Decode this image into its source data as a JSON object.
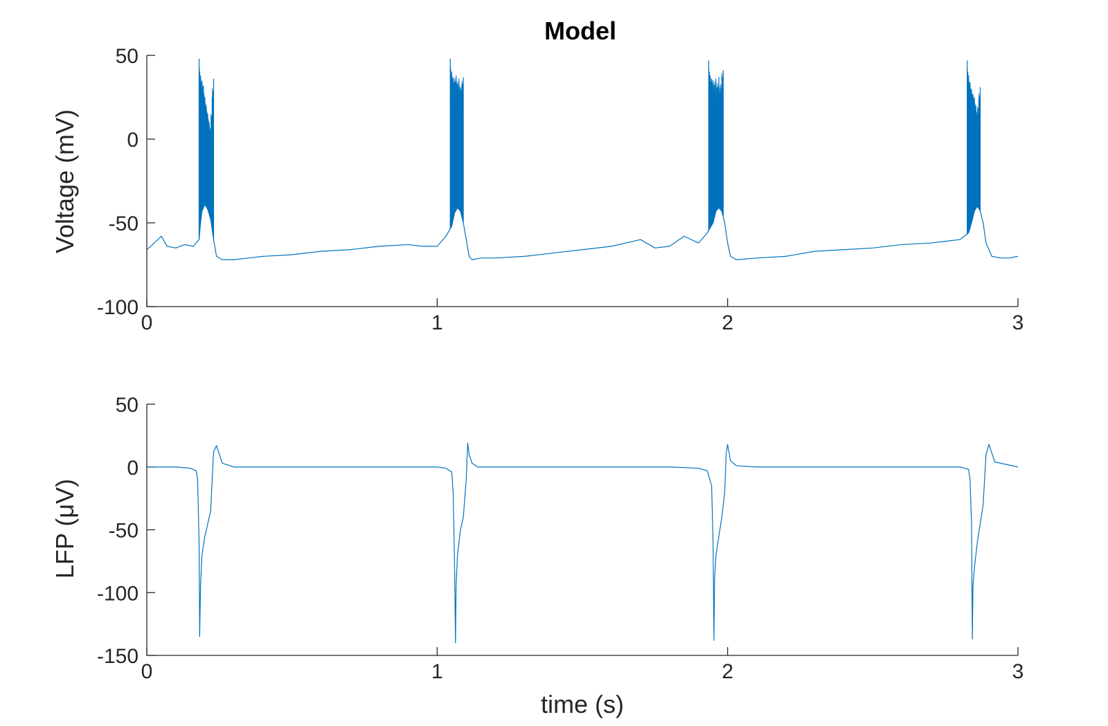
{
  "chart_data": [
    {
      "type": "line",
      "title": "Model",
      "xlabel": "",
      "ylabel": "Voltage (mV)",
      "xlim": [
        0,
        3
      ],
      "ylim": [
        -100,
        50
      ],
      "xticks": [
        0,
        1,
        2,
        3
      ],
      "yticks": [
        -100,
        -50,
        0,
        50
      ],
      "xtick_labels": [
        "0",
        "1",
        "2",
        "3"
      ],
      "ytick_labels": [
        "-100",
        "-50",
        "0",
        "50"
      ],
      "grid": false,
      "color": "#0072BD",
      "series": [
        {
          "x": [
            0.0,
            0.02,
            0.05,
            0.07,
            0.1,
            0.13,
            0.16,
            0.18,
            0.185,
            0.19,
            0.2,
            0.21,
            0.22,
            0.23,
            0.24,
            0.26,
            0.3,
            0.35,
            0.4,
            0.5,
            0.6,
            0.7,
            0.8,
            0.9,
            0.95,
            1.0,
            1.03,
            1.05,
            1.06,
            1.07,
            1.08,
            1.09,
            1.1,
            1.11,
            1.12,
            1.15,
            1.2,
            1.3,
            1.4,
            1.5,
            1.6,
            1.7,
            1.75,
            1.8,
            1.85,
            1.9,
            1.93,
            1.95,
            1.96,
            1.97,
            1.98,
            1.99,
            2.0,
            2.01,
            2.03,
            2.1,
            2.2,
            2.3,
            2.4,
            2.5,
            2.6,
            2.7,
            2.75,
            2.8,
            2.83,
            2.84,
            2.85,
            2.86,
            2.87,
            2.88,
            2.89,
            2.91,
            2.94,
            2.97,
            3.0
          ],
          "y": [
            -66,
            -63,
            -58,
            -64,
            -65,
            -63,
            -64,
            -60,
            -50,
            -43,
            -39,
            -42,
            -48,
            -60,
            -70,
            -72,
            -72,
            -71,
            -70,
            -69,
            -67,
            -66,
            -64,
            -63,
            -64,
            -64,
            -58,
            -52,
            -44,
            -41,
            -43,
            -50,
            -60,
            -70,
            -72,
            -71,
            -71,
            -70,
            -68,
            -66,
            -64,
            -60,
            -65,
            -64,
            -58,
            -62,
            -56,
            -50,
            -43,
            -41,
            -43,
            -50,
            -62,
            -70,
            -72,
            -71,
            -70,
            -67,
            -66,
            -65,
            -63,
            -62,
            -61,
            -60,
            -56,
            -50,
            -43,
            -40,
            -43,
            -50,
            -62,
            -70,
            -71,
            -71,
            -70
          ]
        }
      ],
      "spikes": [
        {
          "x": [
            0.18,
            0.185,
            0.19,
            0.195,
            0.2,
            0.205,
            0.21,
            0.215,
            0.22,
            0.225,
            0.23
          ],
          "y": [
            48,
            38,
            35,
            32,
            25,
            20,
            15,
            10,
            5,
            25,
            36
          ]
        },
        {
          "x": [
            1.045,
            1.05,
            1.055,
            1.06,
            1.065,
            1.07,
            1.075,
            1.08,
            1.085,
            1.09
          ],
          "y": [
            48,
            40,
            37,
            35,
            38,
            33,
            36,
            30,
            33,
            37
          ]
        },
        {
          "x": [
            1.935,
            1.94,
            1.945,
            1.95,
            1.955,
            1.96,
            1.965,
            1.97,
            1.975,
            1.98,
            1.985
          ],
          "y": [
            47,
            38,
            36,
            35,
            33,
            36,
            30,
            37,
            28,
            38,
            41
          ]
        },
        {
          "x": [
            2.825,
            2.83,
            2.835,
            2.84,
            2.845,
            2.85,
            2.855,
            2.86,
            2.865,
            2.87
          ],
          "y": [
            47,
            38,
            34,
            30,
            27,
            25,
            20,
            15,
            24,
            31
          ]
        }
      ]
    },
    {
      "type": "line",
      "title": "",
      "xlabel": "time (s)",
      "ylabel": "LFP (μV)",
      "xlim": [
        0,
        3
      ],
      "ylim": [
        -150,
        50
      ],
      "xticks": [
        0,
        1,
        2,
        3
      ],
      "yticks": [
        -150,
        -100,
        -50,
        0,
        50
      ],
      "xtick_labels": [
        "0",
        "1",
        "2",
        "3"
      ],
      "ytick_labels": [
        "-150",
        "-100",
        "-50",
        "0",
        "50"
      ],
      "grid": false,
      "color": "#0072BD",
      "series": [
        {
          "x": [
            0.0,
            0.1,
            0.15,
            0.17,
            0.175,
            0.18,
            0.182,
            0.185,
            0.19,
            0.2,
            0.21,
            0.22,
            0.225,
            0.23,
            0.24,
            0.26,
            0.3,
            0.5,
            0.8,
            1.0,
            1.03,
            1.05,
            1.055,
            1.06,
            1.063,
            1.065,
            1.07,
            1.08,
            1.09,
            1.1,
            1.105,
            1.11,
            1.12,
            1.14,
            1.2,
            1.5,
            1.8,
            1.9,
            1.93,
            1.945,
            1.95,
            1.953,
            1.955,
            1.96,
            1.97,
            1.98,
            1.99,
            1.995,
            2.0,
            2.01,
            2.03,
            2.1,
            2.5,
            2.7,
            2.8,
            2.83,
            2.835,
            2.84,
            2.843,
            2.845,
            2.85,
            2.86,
            2.87,
            2.88,
            2.885,
            2.89,
            2.9,
            2.92,
            3.0
          ],
          "y": [
            0,
            0,
            -1,
            -3,
            -10,
            -60,
            -135,
            -95,
            -70,
            -55,
            -45,
            -35,
            -10,
            12,
            17,
            3,
            0,
            0,
            0,
            0,
            -1,
            -4,
            -20,
            -80,
            -140,
            -95,
            -70,
            -50,
            -40,
            -10,
            19,
            10,
            3,
            0,
            0,
            0,
            0,
            -1,
            -3,
            -15,
            -60,
            -138,
            -90,
            -70,
            -55,
            -40,
            -20,
            10,
            18,
            5,
            1,
            0,
            0,
            0,
            0,
            -2,
            -10,
            -45,
            -137,
            -95,
            -80,
            -60,
            -45,
            -30,
            -10,
            10,
            18,
            4,
            0
          ]
        }
      ]
    }
  ]
}
